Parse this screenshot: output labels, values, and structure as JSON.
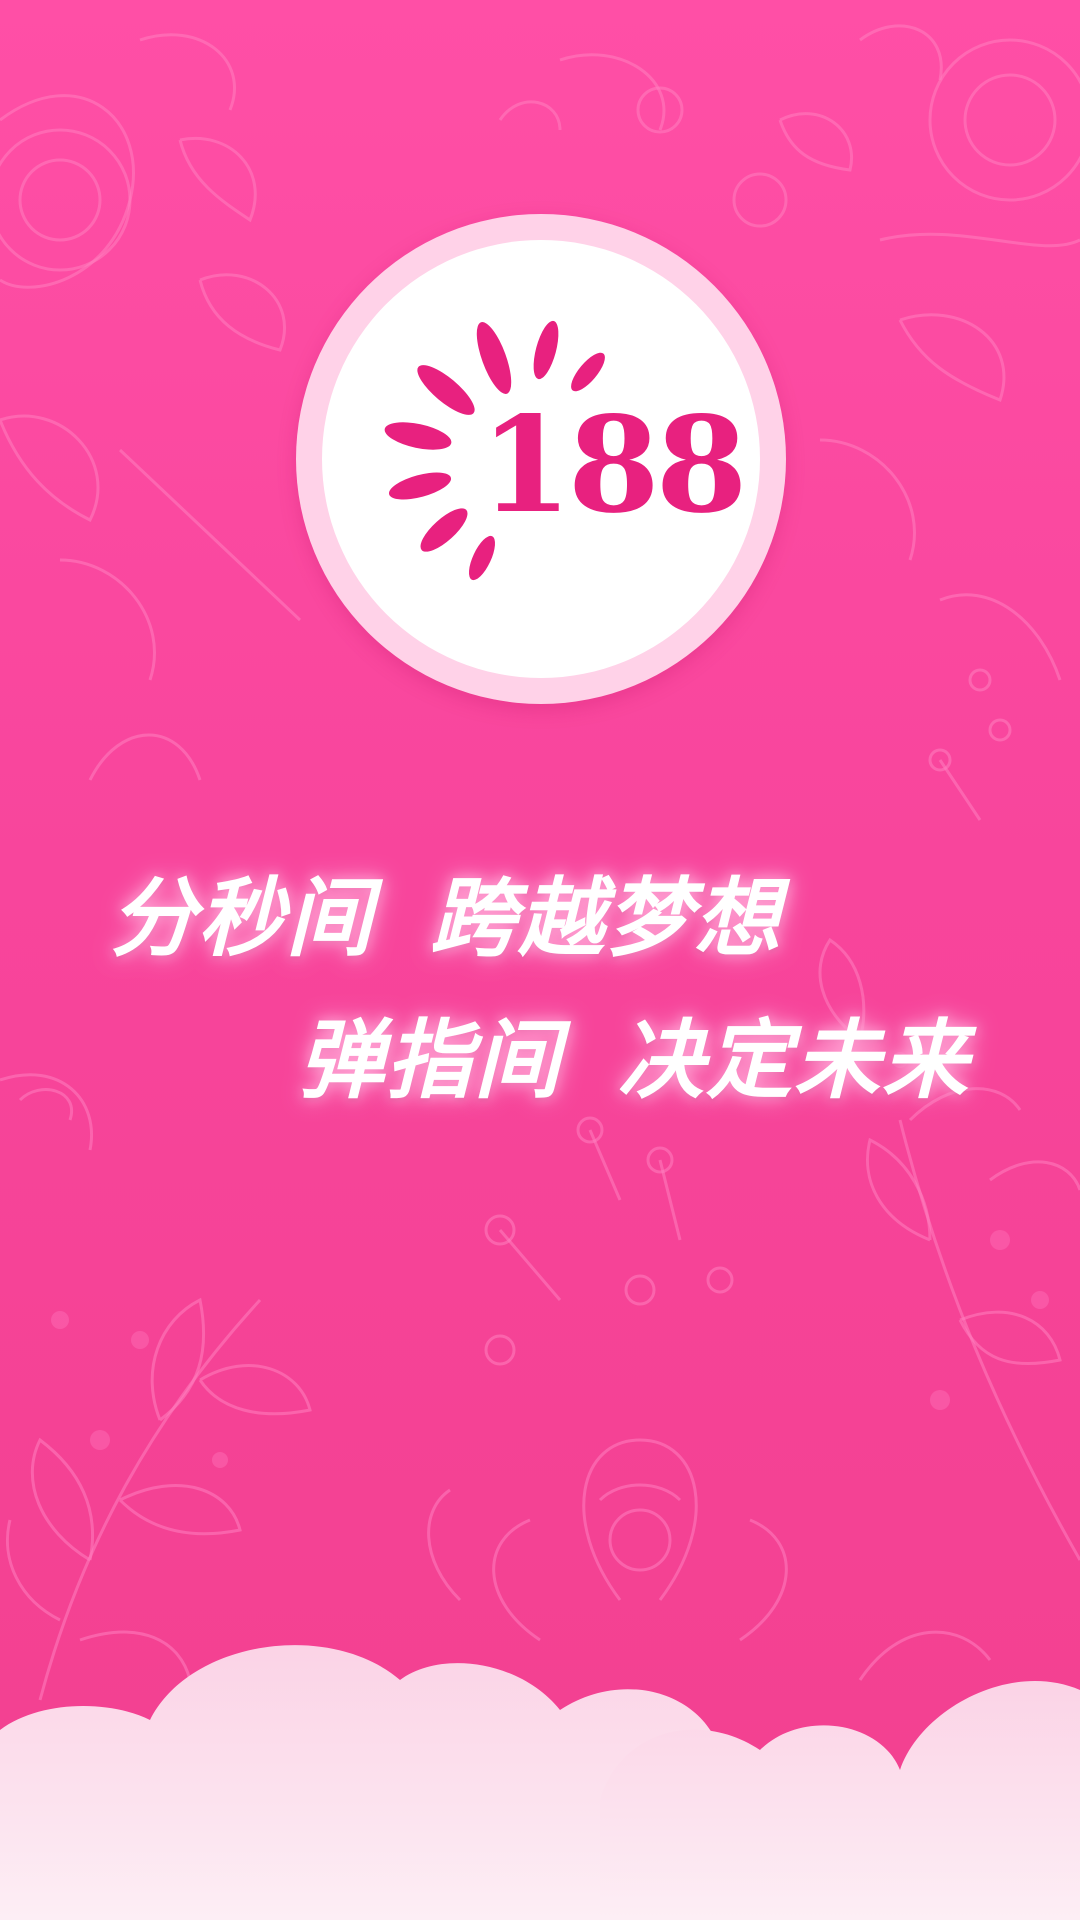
{
  "splash": {
    "logo": {
      "number": "188"
    },
    "slogan": {
      "line1_part1": "分秒间",
      "line1_part2": "跨越梦想",
      "line2_part1": "弹指间",
      "line2_part2": "决定未来"
    }
  },
  "colors": {
    "background": "#f8459c",
    "logo_accent": "#e8217f",
    "text": "#ffffff",
    "cloud": "#fde6f1"
  }
}
